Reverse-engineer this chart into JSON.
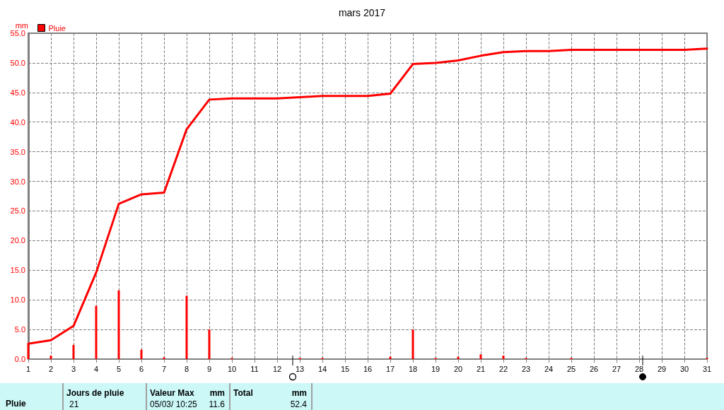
{
  "chart_data": {
    "type": "bar",
    "title": "mars 2017",
    "ylabel": "mm",
    "x": [
      1,
      2,
      3,
      4,
      5,
      6,
      7,
      8,
      9,
      10,
      11,
      12,
      13,
      14,
      15,
      16,
      17,
      18,
      19,
      20,
      21,
      22,
      23,
      24,
      25,
      26,
      27,
      28,
      29,
      30,
      31
    ],
    "series": [
      {
        "name": "Pluie",
        "color": "#ff0000",
        "values": [
          2.6,
          0.6,
          2.4,
          9.0,
          11.6,
          1.6,
          0.3,
          10.7,
          5.0,
          0.2,
          0,
          0,
          0.2,
          0.2,
          0,
          0,
          0.4,
          5.0,
          0.2,
          0.4,
          0.8,
          0.6,
          0.2,
          0,
          0.2,
          0,
          0,
          0,
          0,
          0,
          0.2
        ]
      },
      {
        "type": "line",
        "color": "#ff0000",
        "values": [
          2.6,
          3.2,
          5.6,
          14.6,
          26.2,
          27.8,
          28.1,
          38.8,
          43.8,
          44.0,
          44.0,
          44.0,
          44.2,
          44.4,
          44.4,
          44.4,
          44.8,
          49.8,
          50.0,
          50.4,
          51.2,
          51.8,
          52.0,
          52.0,
          52.2,
          52.2,
          52.2,
          52.2,
          52.2,
          52.2,
          52.4
        ]
      }
    ],
    "xlim": [
      1,
      31
    ],
    "xticks": [
      1,
      2,
      3,
      4,
      5,
      6,
      7,
      8,
      9,
      10,
      11,
      12,
      13,
      14,
      15,
      16,
      17,
      18,
      19,
      20,
      21,
      22,
      23,
      24,
      25,
      26,
      27,
      28,
      29,
      30,
      31
    ],
    "ylim": [
      0,
      55
    ],
    "yticks": [
      {
        "value": 0,
        "label": "0.0"
      },
      {
        "value": 5,
        "label": "5.0"
      },
      {
        "value": 10,
        "label": "10.0"
      },
      {
        "value": 15,
        "label": "15.0"
      },
      {
        "value": 20,
        "label": "20.0"
      },
      {
        "value": 25,
        "label": "25.0"
      },
      {
        "value": 30,
        "label": "30.0"
      },
      {
        "value": 35,
        "label": "35.0"
      },
      {
        "value": 40,
        "label": "40.0"
      },
      {
        "value": 45,
        "label": "45.0"
      },
      {
        "value": 50,
        "label": "50.0"
      },
      {
        "value": 55,
        "label": "55.0"
      }
    ],
    "grid": true,
    "legend": "top left",
    "marker": "none",
    "line_style": "solid",
    "annotations": [
      "Pluie",
      "Jours de pluie",
      "21",
      "Valeur Max",
      "mm",
      "05/03/ 10:25",
      "11.6",
      "Total",
      "mm",
      "52.4"
    ]
  }
}
